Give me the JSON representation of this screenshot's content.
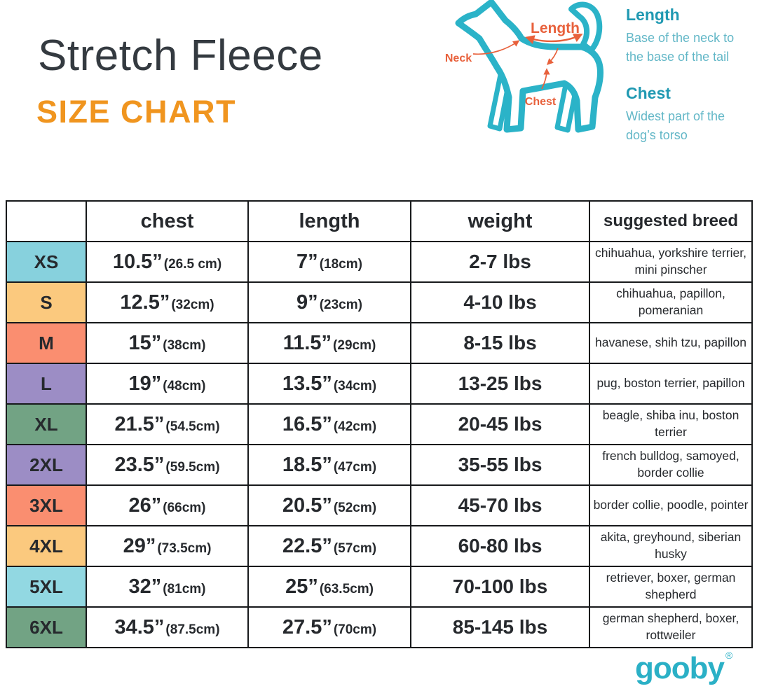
{
  "title": "Stretch Fleece",
  "subtitle": "SIZE CHART",
  "diagram": {
    "length_label": "Length",
    "neck_label": "Neck",
    "chest_label": "Chest"
  },
  "legend": {
    "length": {
      "term": "Length",
      "definition": "Base of the neck to the base of the tail"
    },
    "chest": {
      "term": "Chest",
      "definition": "Widest part of the dog’s torso"
    }
  },
  "table": {
    "headers": {
      "size": "",
      "chest": "chest",
      "length": "length",
      "weight": "weight",
      "breed": "suggested breed"
    },
    "rows": [
      {
        "size": "XS",
        "color": "#87d1dd",
        "chest_in": "10.5”",
        "chest_cm": "(26.5 cm)",
        "length_in": "7”",
        "length_cm": "(18cm)",
        "weight": "2-7 lbs",
        "breed": "chihuahua, yorkshire terrier, mini pinscher"
      },
      {
        "size": "S",
        "color": "#fbc97e",
        "chest_in": "12.5”",
        "chest_cm": "(32cm)",
        "length_in": "9”",
        "length_cm": "(23cm)",
        "weight": "4-10 lbs",
        "breed": "chihuahua, papillon, pomeranian"
      },
      {
        "size": "M",
        "color": "#fa8e70",
        "chest_in": "15”",
        "chest_cm": "(38cm)",
        "length_in": "11.5”",
        "length_cm": "(29cm)",
        "weight": "8-15 lbs",
        "breed": "havanese, shih tzu, papillon"
      },
      {
        "size": "L",
        "color": "#9c8dc5",
        "chest_in": "19”",
        "chest_cm": "(48cm)",
        "length_in": "13.5”",
        "length_cm": "(34cm)",
        "weight": "13-25 lbs",
        "breed": "pug, boston terrier, papillon"
      },
      {
        "size": "XL",
        "color": "#72a384",
        "chest_in": "21.5”",
        "chest_cm": "(54.5cm)",
        "length_in": "16.5”",
        "length_cm": "(42cm)",
        "weight": "20-45 lbs",
        "breed": "beagle, shiba inu, boston terrier"
      },
      {
        "size": "2XL",
        "color": "#9c8dc5",
        "chest_in": "23.5”",
        "chest_cm": "(59.5cm)",
        "length_in": "18.5”",
        "length_cm": "(47cm)",
        "weight": "35-55 lbs",
        "breed": "french bulldog, samoyed, border collie"
      },
      {
        "size": "3XL",
        "color": "#fa8e70",
        "chest_in": "26”",
        "chest_cm": "(66cm)",
        "length_in": "20.5”",
        "length_cm": "(52cm)",
        "weight": "45-70 lbs",
        "breed": "border collie, poodle, pointer"
      },
      {
        "size": "4XL",
        "color": "#fbc97e",
        "chest_in": "29”",
        "chest_cm": "(73.5cm)",
        "length_in": "22.5”",
        "length_cm": "(57cm)",
        "weight": "60-80 lbs",
        "breed": "akita, greyhound, siberian husky"
      },
      {
        "size": "5XL",
        "color": "#92d8e2",
        "chest_in": "32”",
        "chest_cm": "(81cm)",
        "length_in": "25”",
        "length_cm": "(63.5cm)",
        "weight": "70-100 lbs",
        "breed": "retriever, boxer, german shepherd"
      },
      {
        "size": "6XL",
        "color": "#72a384",
        "chest_in": "34.5”",
        "chest_cm": "(87.5cm)",
        "length_in": "27.5”",
        "length_cm": "(70cm)",
        "weight": "85-145 lbs",
        "breed": "german shepherd, boxer, rottweiler"
      }
    ]
  },
  "footer": {
    "logo": "gooby",
    "registered": "®"
  },
  "colors": {
    "title": "#343a40",
    "subtitle_orange": "#f0951f",
    "brand_teal": "#2bb3c8",
    "legend_term_teal": "#2099b2",
    "legend_def_teal": "#62b7c7",
    "annotation_orange": "#e8613c",
    "table_border": "#17191b"
  }
}
